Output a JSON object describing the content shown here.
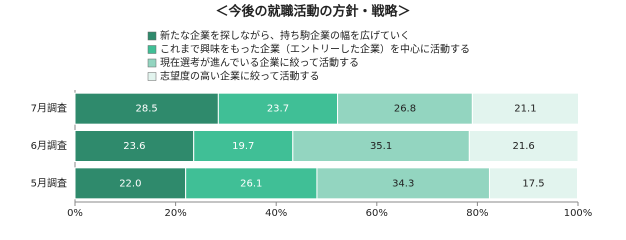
{
  "chart_data": {
    "type": "stacked-bar-horizontal",
    "title": "＜今後の就職活動の方針・戦略＞",
    "categories": [
      "7月調査",
      "6月調査",
      "5月調査"
    ],
    "series": [
      {
        "name": "新たな企業を探しながら、持ち駒企業の幅を広げていく",
        "color": "#2f8a6c",
        "values": [
          28.5,
          23.6,
          22.0
        ],
        "value_labels": [
          "28.5",
          "23.6",
          "22.0"
        ]
      },
      {
        "name": "これまで興味をもった企業（エントリーした企業）を中心に活動する",
        "color": "#40bf96",
        "values": [
          23.7,
          19.7,
          26.1
        ]
      },
      {
        "name": "現在選考が進んでいる企業に絞って活動する",
        "color": "#93d5c0",
        "values": [
          26.8,
          35.1,
          34.3
        ]
      },
      {
        "name": "志望度の高い企業に絞って活動する",
        "color": "#e2f4ee",
        "values": [
          21.1,
          21.6,
          17.5
        ]
      }
    ],
    "xlim": [
      0,
      100
    ],
    "xticks": [
      {
        "value": 0,
        "label": "0%"
      },
      {
        "value": 20,
        "label": "20%"
      },
      {
        "value": 40,
        "label": "40%"
      },
      {
        "value": 60,
        "label": "60%"
      },
      {
        "value": 80,
        "label": "80%"
      },
      {
        "value": 100,
        "label": "100%"
      }
    ]
  }
}
